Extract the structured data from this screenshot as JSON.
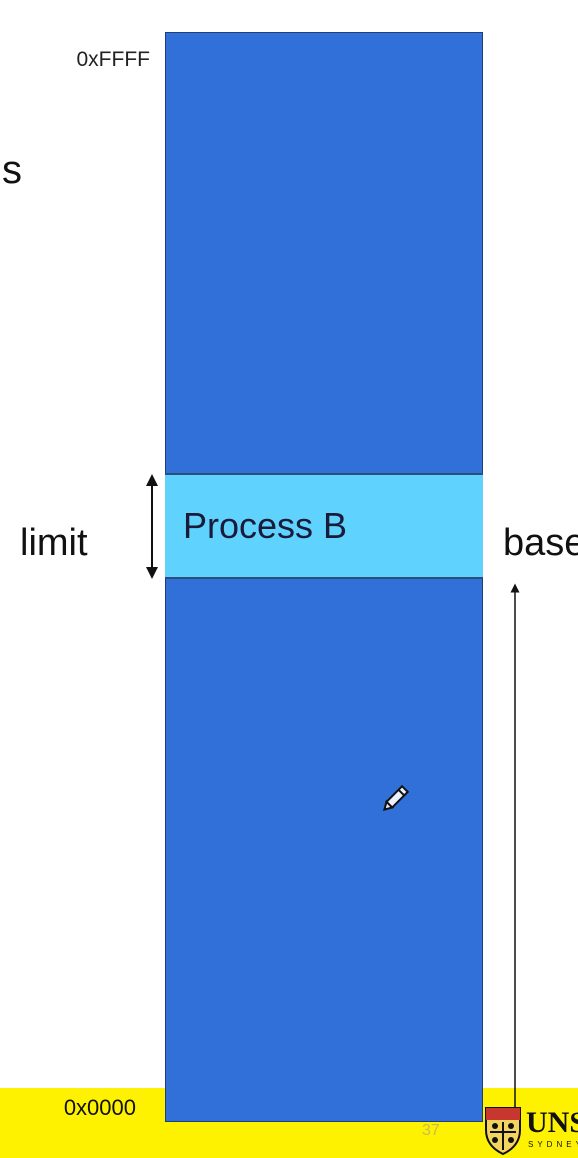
{
  "diagram": {
    "title_fragment": "s",
    "top_address": "0xFFFF",
    "bottom_address": "0x0000",
    "process_label": "Process B",
    "limit_label": "limit",
    "base_label": "base",
    "page_number": "37",
    "logo_text": "UNSW",
    "logo_subtext": "SYDNEY"
  },
  "colors": {
    "memory": "#3170d9",
    "process": "#5fd3fd",
    "footer": "#fff200"
  },
  "icons": [
    "pencil-icon",
    "crest-icon",
    "limit-arrow",
    "base-arrow"
  ]
}
